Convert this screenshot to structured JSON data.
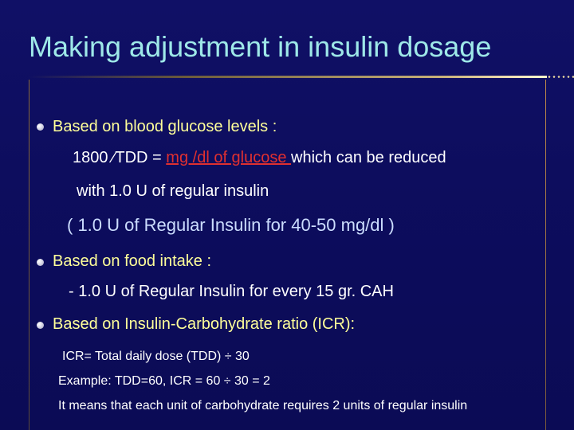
{
  "slide": {
    "title": "Making adjustment in insulin dosage",
    "bullet1": {
      "heading": "Based on blood glucose levels :",
      "line1_prefix": "1800 ∕TDD = ",
      "line1_red": "mg /dl of glucose ",
      "line1_suffix": "which can be reduced",
      "line2": "with 1.0 U of regular insulin",
      "note": "( 1.0 U of Regular Insulin for 40-50 mg/dl )"
    },
    "bullet2": {
      "heading": "Based on food intake :",
      "line1": "- 1.0 U of Regular Insulin for every 15 gr. CAH"
    },
    "bullet3": {
      "heading": "Based on Insulin-Carbohydrate ratio (ICR):",
      "line1": "ICR= Total daily dose (TDD) ÷ 30",
      "line2": "Example: TDD=60, ICR = 60 ÷ 30 = 2",
      "line3": "It means that each unit of carbohydrate requires 2 units of regular insulin"
    },
    "colors": {
      "background": "#0d0d5e",
      "title": "#9ee8e8",
      "heading": "#ffff99",
      "emphasis": "#e03030",
      "note": "#ccddff"
    }
  }
}
